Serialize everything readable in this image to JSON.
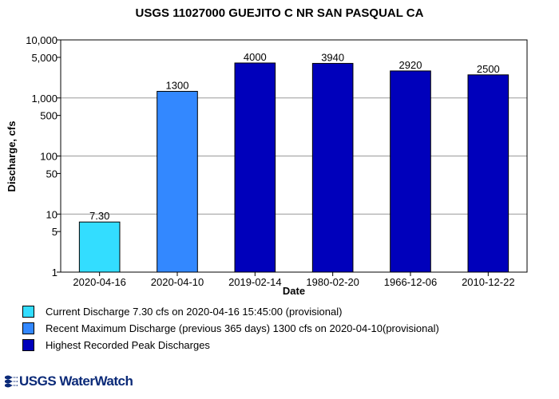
{
  "title": "USGS 11027000 GUEJITO C NR SAN PASQUAL CA",
  "chart_data": {
    "type": "bar",
    "title": "USGS 11027000 GUEJITO C NR SAN PASQUAL CA",
    "xlabel": "Date",
    "ylabel": "Discharge, cfs",
    "yscale": "log",
    "ylim": [
      1,
      10000
    ],
    "yticks": [
      {
        "value": 1,
        "label": "1"
      },
      {
        "value": 5,
        "label": "5"
      },
      {
        "value": 10,
        "label": "10"
      },
      {
        "value": 50,
        "label": "50"
      },
      {
        "value": 100,
        "label": "100"
      },
      {
        "value": 500,
        "label": "500"
      },
      {
        "value": 1000,
        "label": "1,000"
      },
      {
        "value": 5000,
        "label": "5,000"
      },
      {
        "value": 10000,
        "label": "10,000"
      }
    ],
    "grid": true,
    "categories": [
      "2020-04-16",
      "2020-04-10",
      "2019-02-14",
      "1980-02-20",
      "1966-12-06",
      "2010-12-22"
    ],
    "values": [
      7.3,
      1300,
      4000,
      3940,
      2920,
      2500
    ],
    "value_labels": [
      "7.30",
      "1300",
      "4000",
      "3940",
      "2920",
      "2500"
    ],
    "bar_colors": [
      "#33ddff",
      "#3388ff",
      "#0000bb",
      "#0000bb",
      "#0000bb",
      "#0000bb"
    ]
  },
  "legend": [
    {
      "label": "Current Discharge 7.30 cfs on 2020-04-16 15:45:00 (provisional)",
      "color": "#33ddff"
    },
    {
      "label": "Recent Maximum Discharge (previous 365 days) 1300 cfs on 2020-04-10(provisional)",
      "color": "#3388ff"
    },
    {
      "label": "Highest Recorded Peak Discharges",
      "color": "#0000bb"
    }
  ],
  "logo": {
    "text": "USGS WaterWatch"
  }
}
